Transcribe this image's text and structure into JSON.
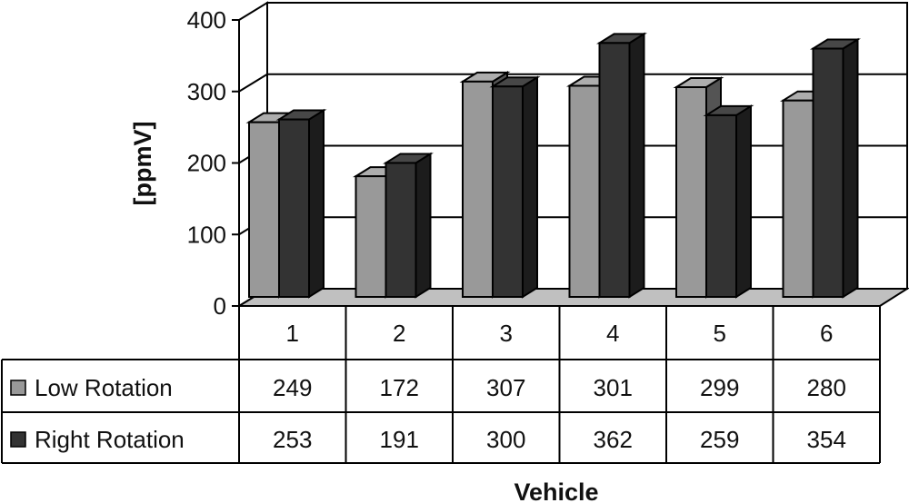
{
  "chart_data": {
    "type": "bar",
    "categories": [
      "1",
      "2",
      "3",
      "4",
      "5",
      "6"
    ],
    "series": [
      {
        "name": "Low Rotation",
        "values": [
          249,
          172,
          307,
          301,
          299,
          280
        ],
        "color": "#999999"
      },
      {
        "name": "Right Rotation",
        "values": [
          253,
          191,
          300,
          362,
          259,
          354
        ],
        "color": "#333333"
      }
    ],
    "table_values": {
      "low": [
        "249",
        "172",
        "307",
        "301",
        "299",
        "280"
      ],
      "right": [
        "253",
        "191",
        "300",
        "362",
        "259",
        "354"
      ]
    },
    "title": "",
    "xlabel": "Vehicle",
    "ylabel": "[ppmV]",
    "ylim": [
      0,
      400
    ],
    "yticks": [
      "0",
      "100",
      "200",
      "300",
      "400"
    ],
    "grid": true,
    "legend": "data-table"
  }
}
